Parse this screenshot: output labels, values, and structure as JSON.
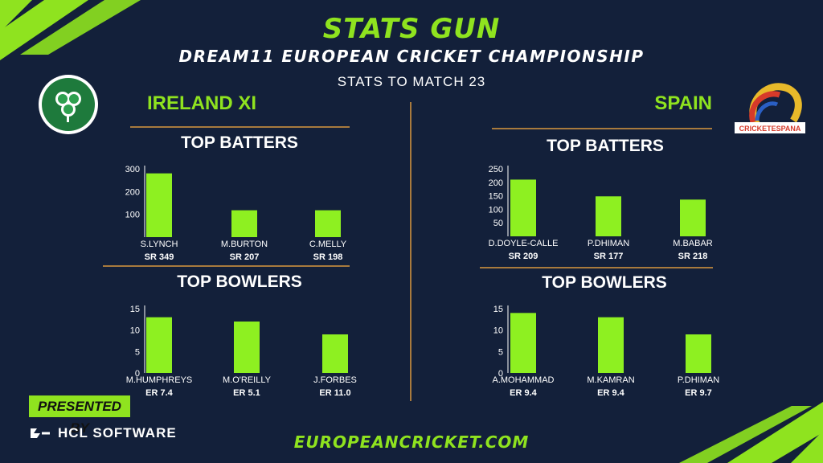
{
  "header": {
    "brand": "STATS GUN",
    "competition": "DREAM11 EUROPEAN CRICKET CHAMPIONSHIP",
    "subtitle": "STATS TO MATCH 23"
  },
  "teams": {
    "left": {
      "name": "IRELAND XI",
      "batters_title": "TOP BATTERS",
      "bowlers_title": "TOP BOWLERS"
    },
    "right": {
      "name": "SPAIN",
      "logo_text": "CRICKETESPANA",
      "batters_title": "TOP BATTERS",
      "bowlers_title": "TOP BOWLERS"
    }
  },
  "chart_data": [
    {
      "type": "bar",
      "categories": [
        "S.LYNCH",
        "M.BURTON",
        "C.MELLY"
      ],
      "sublabels": [
        "SR 349",
        "SR 207",
        "SR 198"
      ],
      "values": [
        280,
        118,
        118
      ],
      "ylim": [
        0,
        300
      ],
      "yticks": [
        100,
        200,
        300
      ]
    },
    {
      "type": "bar",
      "categories": [
        "D.DOYLE-CALLE",
        "P.DHIMAN",
        "M.BABAR"
      ],
      "sublabels": [
        "SR 209",
        "SR 177",
        "SR 218"
      ],
      "values": [
        210,
        148,
        136
      ],
      "ylim": [
        0,
        250
      ],
      "yticks": [
        50,
        100,
        150,
        200,
        250
      ]
    },
    {
      "type": "bar",
      "categories": [
        "M.HUMPHREYS",
        "M.O'REILLY",
        "J.FORBES"
      ],
      "sublabels": [
        "ER 7.4",
        "ER 5.1",
        "ER 11.0"
      ],
      "values": [
        13,
        12,
        9
      ],
      "ylim": [
        0,
        15
      ],
      "yticks": [
        0,
        5,
        10,
        15
      ]
    },
    {
      "type": "bar",
      "categories": [
        "A.MOHAMMAD",
        "M.KAMRAN",
        "P.DHIMAN"
      ],
      "sublabels": [
        "ER 9.4",
        "ER 9.4",
        "ER 9.7"
      ],
      "values": [
        14,
        13,
        9
      ],
      "ylim": [
        0,
        15
      ],
      "yticks": [
        0,
        5,
        10,
        15
      ]
    }
  ],
  "colors": {
    "background": "#13203a",
    "accent": "#8fe31f",
    "bar": "#8ef021",
    "divider": "#a87a3d"
  },
  "footer": {
    "presented_by": "PRESENTED BY",
    "sponsor": "HCL SOFTWARE",
    "website": "EUROPEANCRICKET.COM"
  }
}
